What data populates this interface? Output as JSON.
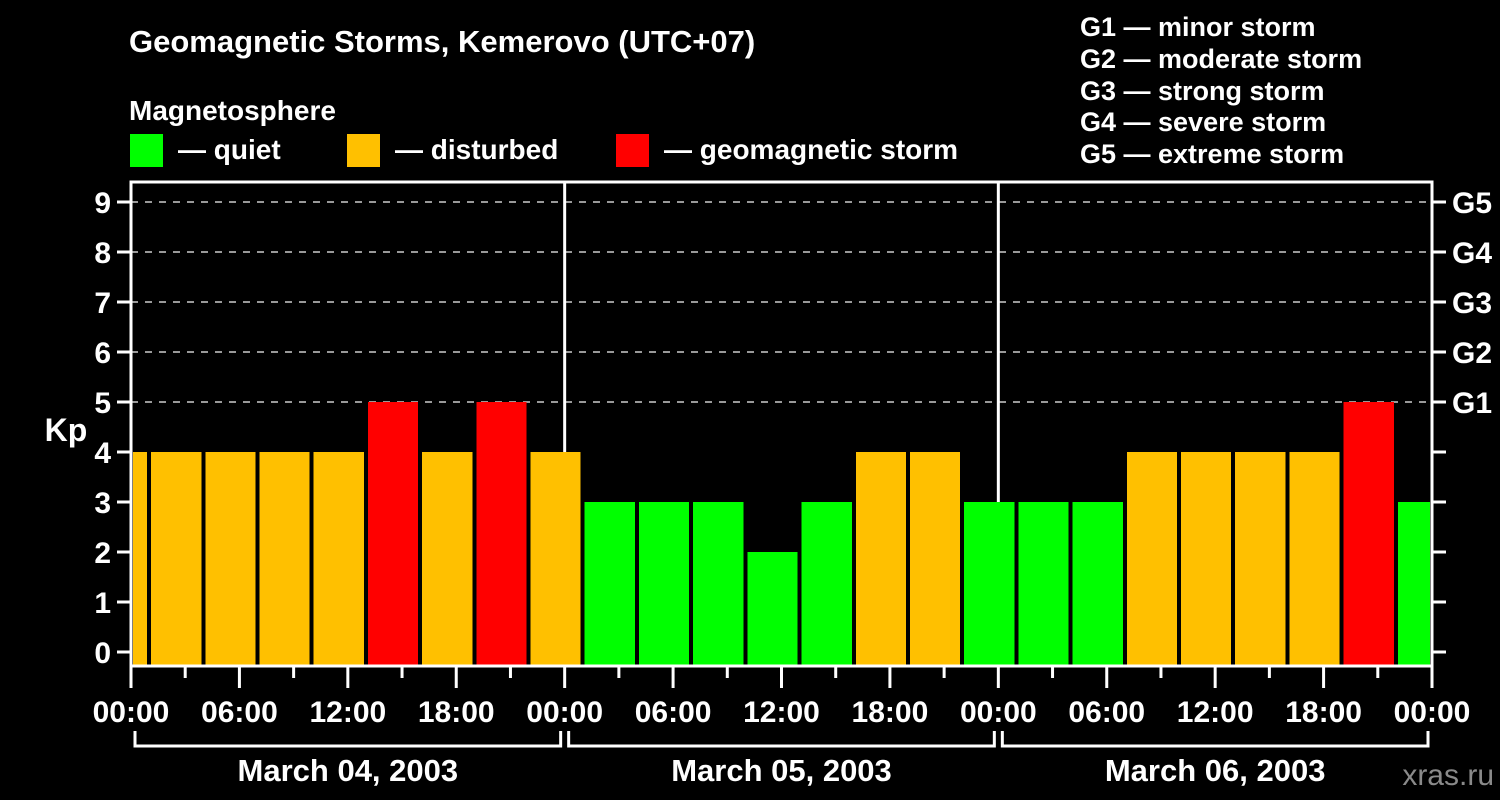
{
  "title": "Geomagnetic Storms, Kemerovo (UTC+07)",
  "subtitle": "Magnetosphere",
  "legend": {
    "items": [
      {
        "key": "quiet",
        "label": "— quiet",
        "color": "#00ff00"
      },
      {
        "key": "disturbed",
        "label": "— disturbed",
        "color": "#ffc000"
      },
      {
        "key": "storm",
        "label": "— geomagnetic storm",
        "color": "#ff0000"
      }
    ]
  },
  "storm_scale_legend": {
    "lines": [
      "G1 — minor storm",
      "G2 — moderate storm",
      "G3 — strong storm",
      "G4 — severe storm",
      "G5 — extreme storm"
    ]
  },
  "watermark": "xras.ru",
  "colors": {
    "background": "#000000",
    "axis": "#ffffff",
    "gridline": "#999999",
    "watermark": "#8a8a8a"
  },
  "chart_data": {
    "type": "bar",
    "ylabel": "Kp",
    "ylim": [
      -0.3,
      9.4
    ],
    "yticks": [
      0,
      1,
      2,
      3,
      4,
      5,
      6,
      7,
      8,
      9
    ],
    "gridline_values": [
      5,
      6,
      7,
      8,
      9
    ],
    "right_axis": {
      "labels": [
        {
          "value": 5,
          "text": "G1"
        },
        {
          "value": 6,
          "text": "G2"
        },
        {
          "value": 7,
          "text": "G3"
        },
        {
          "value": 8,
          "text": "G4"
        },
        {
          "value": 9,
          "text": "G5"
        }
      ]
    },
    "x_axis": {
      "minor_tick_hours": 3,
      "major_tick_hours": 6,
      "time_labels": [
        {
          "hour": 0,
          "text": "00:00"
        },
        {
          "hour": 6,
          "text": "06:00"
        },
        {
          "hour": 12,
          "text": "12:00"
        },
        {
          "hour": 18,
          "text": "18:00"
        },
        {
          "hour": 24,
          "text": "00:00"
        },
        {
          "hour": 30,
          "text": "06:00"
        },
        {
          "hour": 36,
          "text": "12:00"
        },
        {
          "hour": 42,
          "text": "18:00"
        },
        {
          "hour": 48,
          "text": "00:00"
        },
        {
          "hour": 54,
          "text": "06:00"
        },
        {
          "hour": 60,
          "text": "12:00"
        },
        {
          "hour": 66,
          "text": "18:00"
        },
        {
          "hour": 72,
          "text": "00:00"
        }
      ]
    },
    "days": [
      {
        "label": "March 04, 2003",
        "start_hour": 0,
        "end_hour": 24
      },
      {
        "label": "March 05, 2003",
        "start_hour": 24,
        "end_hour": 48
      },
      {
        "label": "March 06, 2003",
        "start_hour": 48,
        "end_hour": 72
      }
    ],
    "status_colors": {
      "quiet": "#00ff00",
      "disturbed": "#ffc000",
      "storm": "#ff0000"
    },
    "bars": [
      {
        "start_hour": 0,
        "end_hour": 1,
        "kp": 4,
        "status": "disturbed"
      },
      {
        "start_hour": 1,
        "end_hour": 4,
        "kp": 4,
        "status": "disturbed"
      },
      {
        "start_hour": 4,
        "end_hour": 7,
        "kp": 4,
        "status": "disturbed"
      },
      {
        "start_hour": 7,
        "end_hour": 10,
        "kp": 4,
        "status": "disturbed"
      },
      {
        "start_hour": 10,
        "end_hour": 13,
        "kp": 4,
        "status": "disturbed"
      },
      {
        "start_hour": 13,
        "end_hour": 16,
        "kp": 5,
        "status": "storm"
      },
      {
        "start_hour": 16,
        "end_hour": 19,
        "kp": 4,
        "status": "disturbed"
      },
      {
        "start_hour": 19,
        "end_hour": 22,
        "kp": 5,
        "status": "storm"
      },
      {
        "start_hour": 22,
        "end_hour": 25,
        "kp": 4,
        "status": "disturbed"
      },
      {
        "start_hour": 25,
        "end_hour": 28,
        "kp": 3,
        "status": "quiet"
      },
      {
        "start_hour": 28,
        "end_hour": 31,
        "kp": 3,
        "status": "quiet"
      },
      {
        "start_hour": 31,
        "end_hour": 34,
        "kp": 3,
        "status": "quiet"
      },
      {
        "start_hour": 34,
        "end_hour": 37,
        "kp": 2,
        "status": "quiet"
      },
      {
        "start_hour": 37,
        "end_hour": 40,
        "kp": 3,
        "status": "quiet"
      },
      {
        "start_hour": 40,
        "end_hour": 43,
        "kp": 4,
        "status": "disturbed"
      },
      {
        "start_hour": 43,
        "end_hour": 46,
        "kp": 4,
        "status": "disturbed"
      },
      {
        "start_hour": 46,
        "end_hour": 49,
        "kp": 3,
        "status": "quiet"
      },
      {
        "start_hour": 49,
        "end_hour": 52,
        "kp": 3,
        "status": "quiet"
      },
      {
        "start_hour": 52,
        "end_hour": 55,
        "kp": 3,
        "status": "quiet"
      },
      {
        "start_hour": 55,
        "end_hour": 58,
        "kp": 4,
        "status": "disturbed"
      },
      {
        "start_hour": 58,
        "end_hour": 61,
        "kp": 4,
        "status": "disturbed"
      },
      {
        "start_hour": 61,
        "end_hour": 64,
        "kp": 4,
        "status": "disturbed"
      },
      {
        "start_hour": 64,
        "end_hour": 67,
        "kp": 4,
        "status": "disturbed"
      },
      {
        "start_hour": 67,
        "end_hour": 70,
        "kp": 5,
        "status": "storm"
      },
      {
        "start_hour": 70,
        "end_hour": 72,
        "kp": 3,
        "status": "quiet"
      }
    ]
  }
}
